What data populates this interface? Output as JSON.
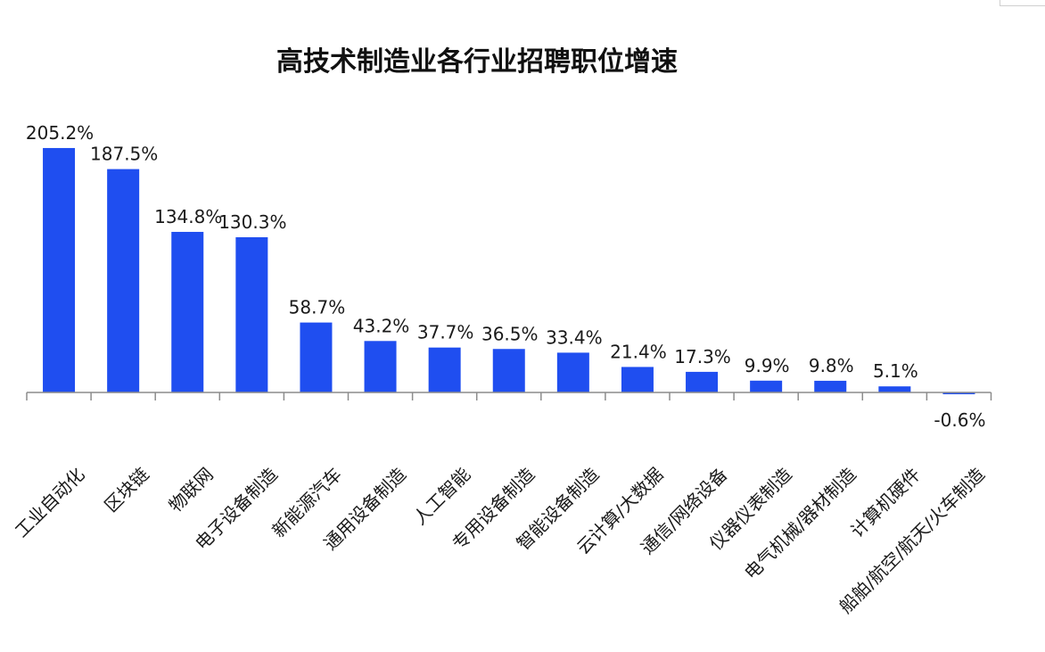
{
  "chart_data": {
    "type": "bar",
    "title": "高技术制造业各行业招聘职位增速",
    "xlabel": "",
    "ylabel": "",
    "ylim": [
      -10,
      220
    ],
    "grid": false,
    "legend": "none",
    "bar_color": "#1f4ef0",
    "categories": [
      "工业自动化",
      "区块链",
      "物联网",
      "电子设备制造",
      "新能源汽车",
      "通用设备制造",
      "人工智能",
      "专用设备制造",
      "智能设备制造",
      "云计算/大数据",
      "通信/网络设备",
      "仪器仪表制造",
      "电气机械/器材制造",
      "计算机硬件",
      "船舶/航空/航天/火车制造"
    ],
    "values": [
      205.2,
      187.5,
      134.8,
      130.3,
      58.7,
      43.2,
      37.7,
      36.5,
      33.4,
      21.4,
      17.3,
      9.9,
      9.8,
      5.1,
      -0.6
    ],
    "data_labels": [
      "205.2%",
      "187.5%",
      "134.8%",
      "130.3%",
      "58.7%",
      "43.2%",
      "37.7%",
      "36.5%",
      "33.4%",
      "21.4%",
      "17.3%",
      "9.9%",
      "9.8%",
      "5.1%",
      "-0.6%"
    ]
  }
}
